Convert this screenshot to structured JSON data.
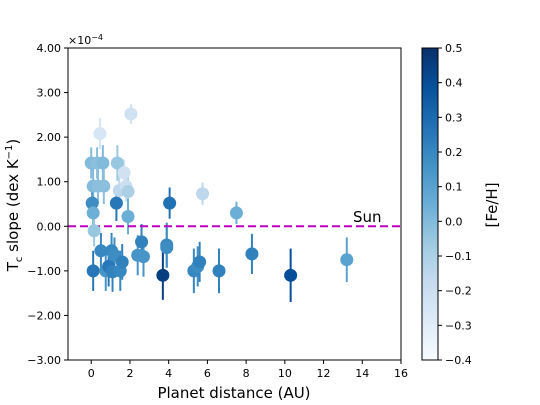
{
  "chart_data": {
    "type": "scatter",
    "xlabel": "Planet distance (AU)",
    "ylabel_main": "T",
    "ylabel_sub": "c",
    "ylabel_rest": " slope (dex K",
    "ylabel_sup": "−1",
    "ylabel_close": ")",
    "y_multiplier_base": "×10",
    "y_multiplier_exp": "−4",
    "xlim": [
      -1.2,
      16
    ],
    "ylim": [
      -3.0,
      4.0
    ],
    "x_ticks": [
      0,
      2,
      4,
      6,
      8,
      10,
      12,
      14,
      16
    ],
    "x_tick_labels": [
      "0",
      "2",
      "4",
      "6",
      "8",
      "10",
      "12",
      "14",
      "16"
    ],
    "y_ticks": [
      -3,
      -2,
      -1,
      0,
      1,
      2,
      3,
      4
    ],
    "y_tick_labels": [
      "−3.00",
      "−2.00",
      "−1.00",
      "0.00",
      "1.00",
      "2.00",
      "3.00",
      "4.00"
    ],
    "reference_line": {
      "y": 0.0,
      "label": "Sun",
      "color": "#c000c0"
    },
    "colorbar": {
      "label": "[Fe/H]",
      "range": [
        -0.4,
        0.5
      ],
      "ticks": [
        -0.4,
        -0.3,
        -0.2,
        -0.1,
        0.0,
        0.1,
        0.2,
        0.3,
        0.4,
        0.5
      ],
      "tick_labels": [
        "−0.4",
        "−0.3",
        "−0.2",
        "−0.1",
        "0.0",
        "0.1",
        "0.2",
        "0.3",
        "0.4",
        "0.5"
      ]
    },
    "points": [
      {
        "x": 0.0,
        "y": 1.42,
        "err": 0.35,
        "feh": 0.0
      },
      {
        "x": 0.1,
        "y": 0.9,
        "err": 0.4,
        "feh": 0.0
      },
      {
        "x": 0.05,
        "y": 0.52,
        "err": 0.35,
        "feh": 0.18
      },
      {
        "x": 0.1,
        "y": 0.3,
        "err": 0.4,
        "feh": 0.05
      },
      {
        "x": 0.15,
        "y": -0.1,
        "err": 0.35,
        "feh": -0.05
      },
      {
        "x": 0.1,
        "y": -1.0,
        "err": 0.45,
        "feh": 0.25
      },
      {
        "x": 0.3,
        "y": 1.42,
        "err": 0.35,
        "feh": -0.02
      },
      {
        "x": 0.35,
        "y": 0.9,
        "err": 0.4,
        "feh": -0.02
      },
      {
        "x": 0.45,
        "y": 2.08,
        "err": 0.35,
        "feh": -0.25
      },
      {
        "x": 0.5,
        "y": -0.55,
        "err": 0.4,
        "feh": 0.2
      },
      {
        "x": 0.6,
        "y": 1.42,
        "err": 0.4,
        "feh": 0.0
      },
      {
        "x": 0.65,
        "y": 0.9,
        "err": 0.4,
        "feh": -0.02
      },
      {
        "x": 0.75,
        "y": -1.0,
        "err": 0.45,
        "feh": 0.15
      },
      {
        "x": 0.9,
        "y": -0.9,
        "err": 0.45,
        "feh": 0.25
      },
      {
        "x": 1.05,
        "y": -0.55,
        "err": 0.4,
        "feh": 0.2
      },
      {
        "x": 1.1,
        "y": -1.02,
        "err": 0.45,
        "feh": 0.22
      },
      {
        "x": 1.2,
        "y": -0.65,
        "err": 0.4,
        "feh": 0.18
      },
      {
        "x": 1.3,
        "y": 0.52,
        "err": 0.4,
        "feh": 0.25
      },
      {
        "x": 1.35,
        "y": 1.42,
        "err": 0.4,
        "feh": -0.05
      },
      {
        "x": 1.45,
        "y": 0.8,
        "err": 0.35,
        "feh": -0.15
      },
      {
        "x": 1.5,
        "y": -1.0,
        "err": 0.45,
        "feh": 0.2
      },
      {
        "x": 1.6,
        "y": -0.8,
        "err": 0.4,
        "feh": 0.22
      },
      {
        "x": 1.7,
        "y": 1.2,
        "err": 0.3,
        "feh": -0.22
      },
      {
        "x": 1.8,
        "y": 0.9,
        "err": 0.35,
        "feh": -0.2
      },
      {
        "x": 1.9,
        "y": 0.78,
        "err": 0.35,
        "feh": -0.1
      },
      {
        "x": 1.9,
        "y": 0.22,
        "err": 0.4,
        "feh": 0.05
      },
      {
        "x": 2.05,
        "y": 2.52,
        "err": 0.22,
        "feh": -0.22
      },
      {
        "x": 2.4,
        "y": -0.65,
        "err": 0.45,
        "feh": 0.15
      },
      {
        "x": 2.6,
        "y": -0.35,
        "err": 0.4,
        "feh": 0.22
      },
      {
        "x": 2.7,
        "y": -0.68,
        "err": 0.45,
        "feh": 0.15
      },
      {
        "x": 3.7,
        "y": -1.1,
        "err": 0.55,
        "feh": 0.45
      },
      {
        "x": 3.9,
        "y": -0.42,
        "err": 0.5,
        "feh": 0.2
      },
      {
        "x": 3.9,
        "y": -0.48,
        "err": 0.45,
        "feh": 0.18
      },
      {
        "x": 4.05,
        "y": 0.52,
        "err": 0.35,
        "feh": 0.28
      },
      {
        "x": 5.3,
        "y": -1.0,
        "err": 0.5,
        "feh": 0.2
      },
      {
        "x": 5.5,
        "y": -0.9,
        "err": 0.45,
        "feh": 0.18
      },
      {
        "x": 5.6,
        "y": -0.8,
        "err": 0.45,
        "feh": 0.22
      },
      {
        "x": 5.75,
        "y": 0.73,
        "err": 0.25,
        "feh": -0.15
      },
      {
        "x": 6.6,
        "y": -1.0,
        "err": 0.5,
        "feh": 0.22
      },
      {
        "x": 7.5,
        "y": 0.3,
        "err": 0.25,
        "feh": 0.05
      },
      {
        "x": 8.3,
        "y": -0.62,
        "err": 0.45,
        "feh": 0.22
      },
      {
        "x": 10.3,
        "y": -1.1,
        "err": 0.6,
        "feh": 0.4
      },
      {
        "x": 13.2,
        "y": -0.75,
        "err": 0.5,
        "feh": 0.1
      }
    ]
  }
}
